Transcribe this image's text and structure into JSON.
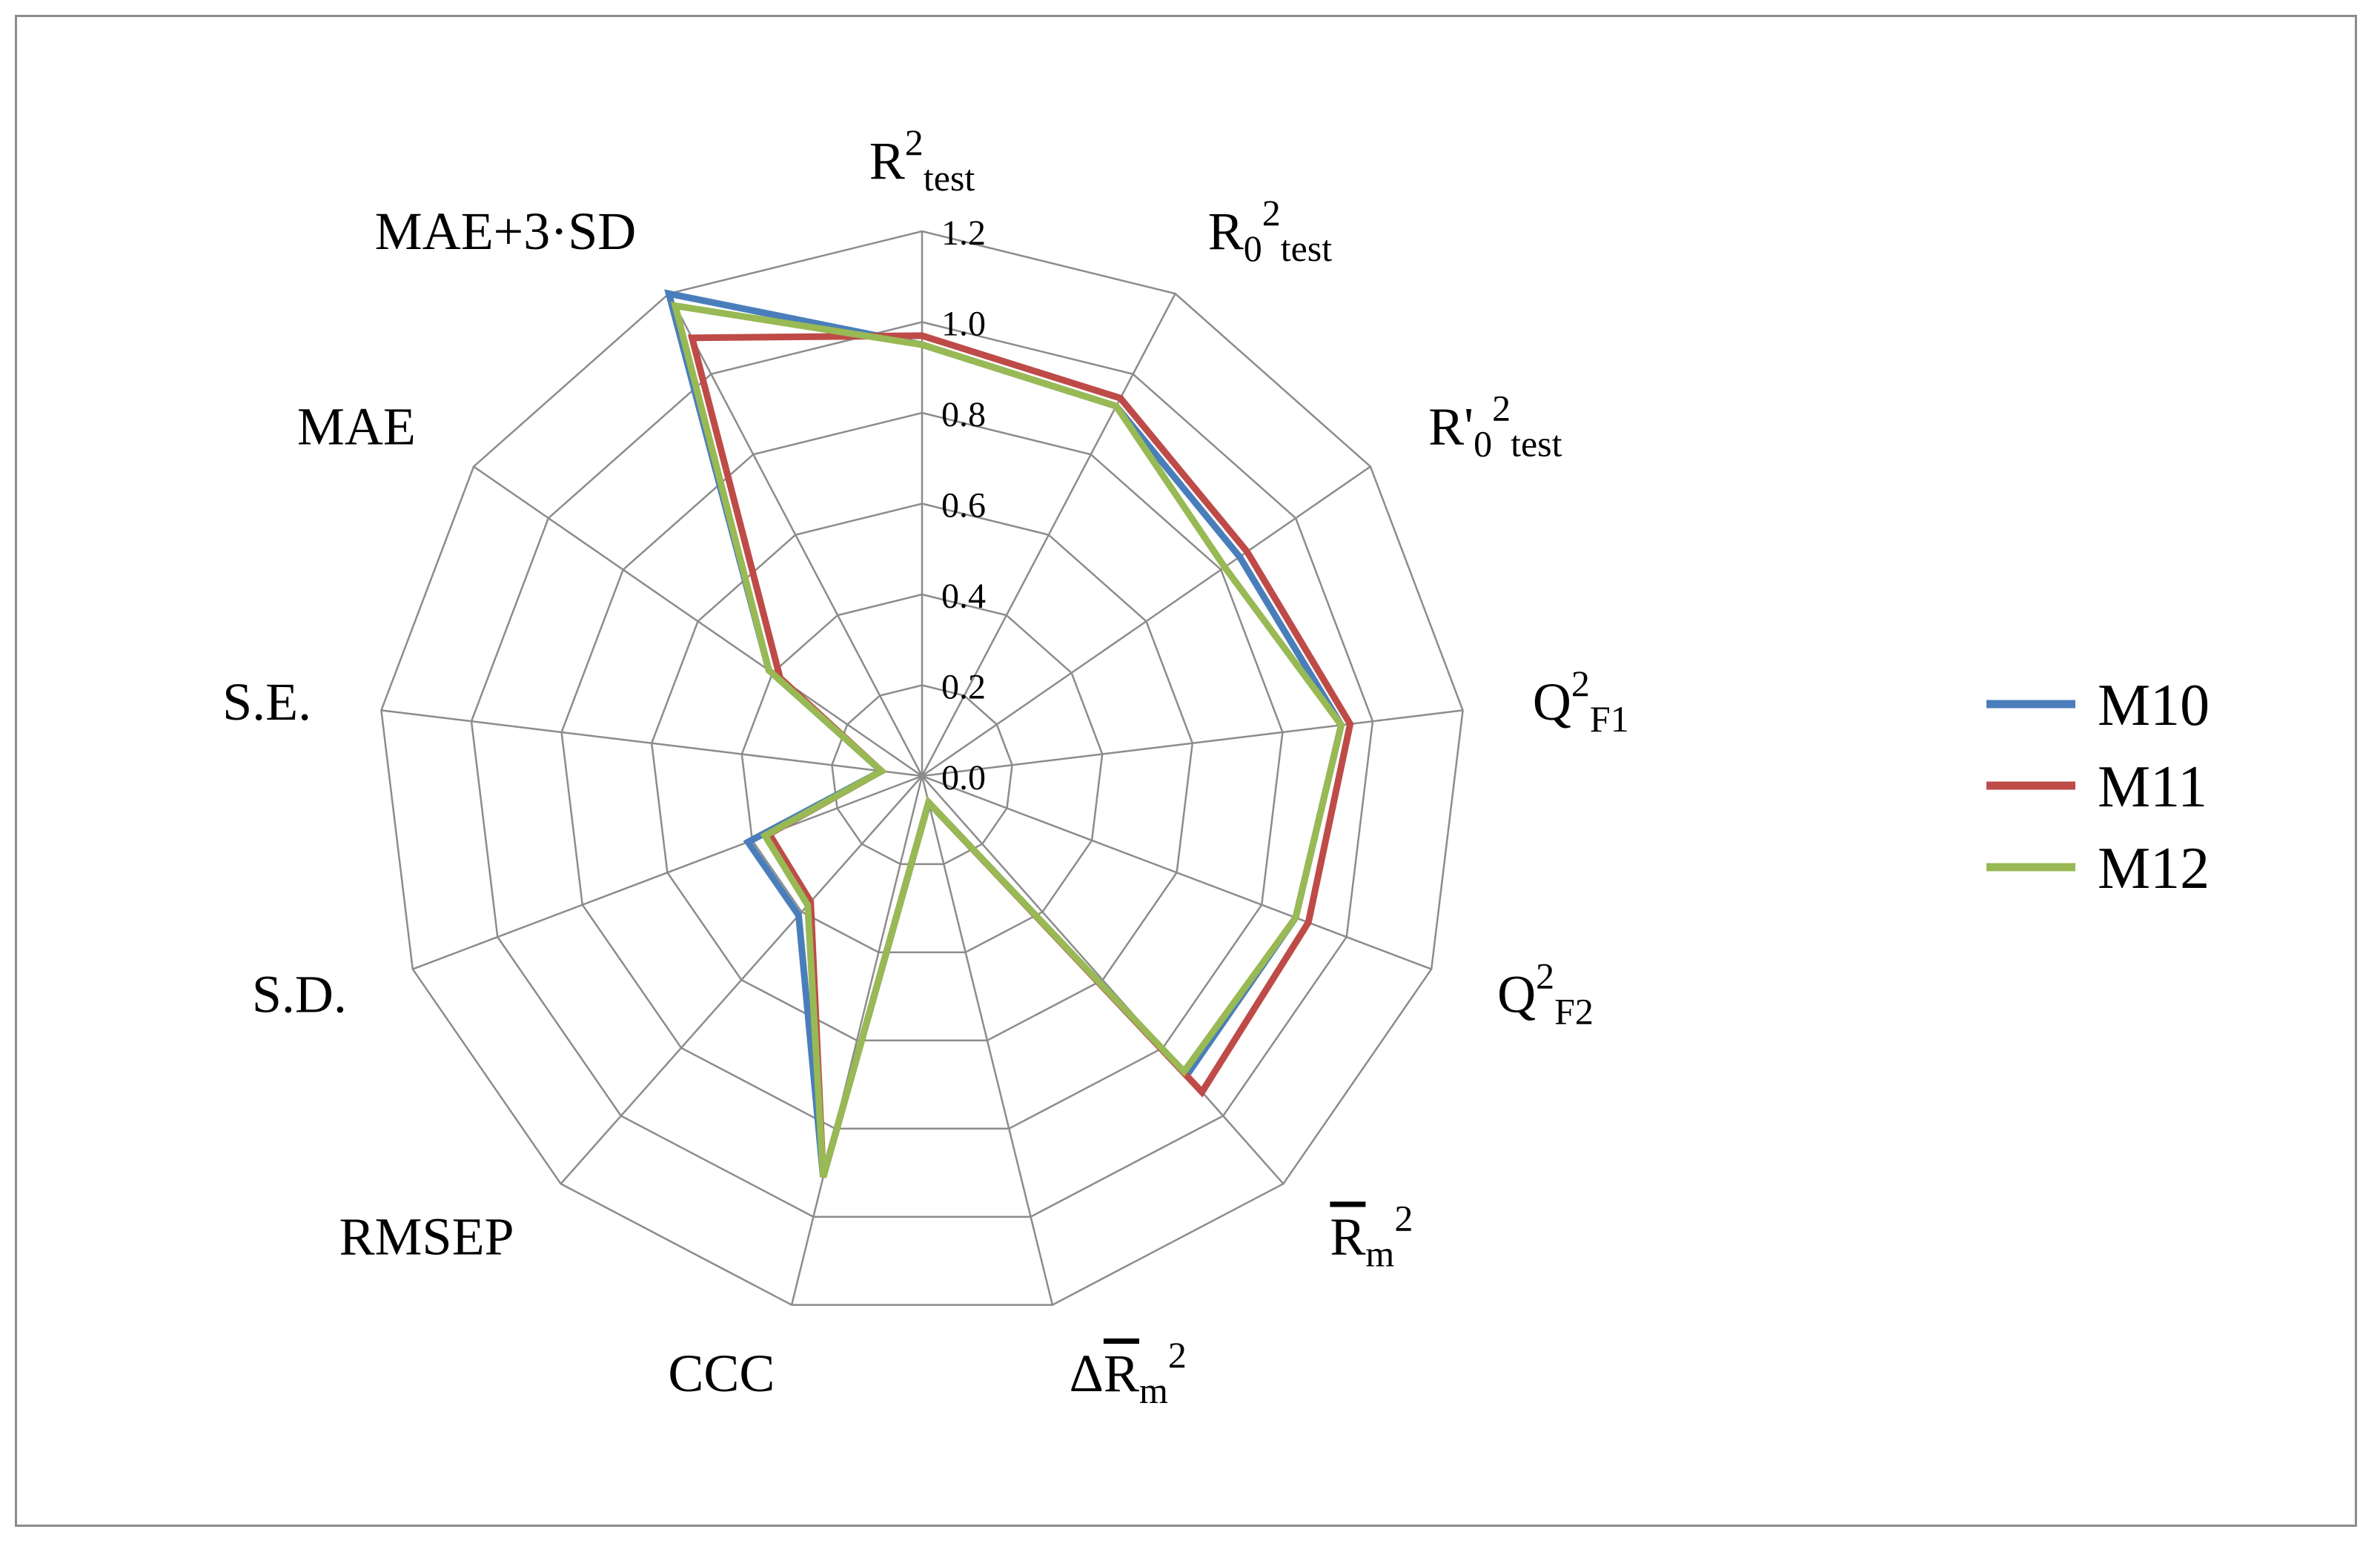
{
  "chart_data": {
    "type": "radar",
    "title": "",
    "axes": [
      {
        "base": "R",
        "sup": "2",
        "sub": "test"
      },
      {
        "base": "R",
        "sub0": "0",
        "sup": "2",
        "sub": "test"
      },
      {
        "base": "R'",
        "sub0": "0",
        "sup": "2",
        "sub": "test"
      },
      {
        "base": "Q",
        "sup": "2",
        "sub": "F1"
      },
      {
        "base": "Q",
        "sup": "2",
        "sub": "F2"
      },
      {
        "base": "R",
        "bar": true,
        "sub0": "m",
        "sup": "2"
      },
      {
        "prefix": "Δ",
        "base": "R",
        "bar": true,
        "sub0": "m",
        "sup": "2"
      },
      {
        "base": "CCC"
      },
      {
        "base": "RMSEP"
      },
      {
        "base": "S.D."
      },
      {
        "base": "S.E."
      },
      {
        "base": "MAE"
      },
      {
        "base": "MAE+3·SD"
      }
    ],
    "rlim": [
      0,
      1.2
    ],
    "ticks": [
      "0.0",
      "0.2",
      "0.4",
      "0.6",
      "0.8",
      "1.0",
      "1.2"
    ],
    "grid": true,
    "legend_position": "right",
    "series": [
      {
        "name": "M10",
        "color": "#4a7ebb",
        "values": [
          0.95,
          0.92,
          0.85,
          0.93,
          0.88,
          0.88,
          0.06,
          0.91,
          0.41,
          0.41,
          0.09,
          0.41,
          1.2
        ]
      },
      {
        "name": "M11",
        "color": "#be4b48",
        "values": [
          0.97,
          0.94,
          0.87,
          0.95,
          0.91,
          0.93,
          0.06,
          0.91,
          0.37,
          0.36,
          0.09,
          0.38,
          1.09
        ]
      },
      {
        "name": "M12",
        "color": "#98b954",
        "values": [
          0.95,
          0.92,
          0.81,
          0.93,
          0.88,
          0.87,
          0.06,
          0.91,
          0.38,
          0.37,
          0.09,
          0.41,
          1.17
        ]
      }
    ]
  }
}
